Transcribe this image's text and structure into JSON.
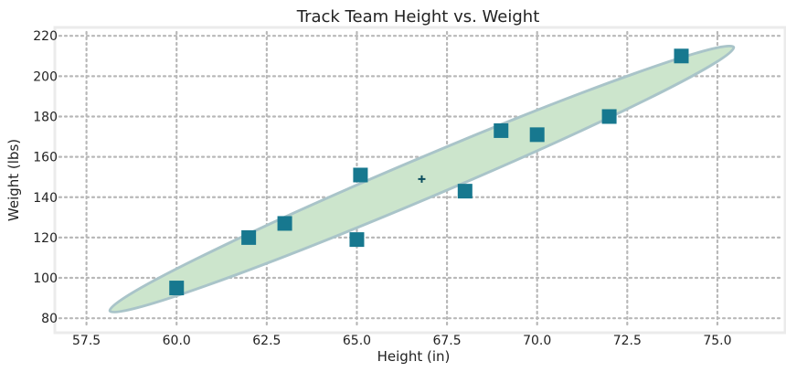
{
  "chart_data": {
    "type": "scatter",
    "title": "Track Team Height vs. Weight",
    "xlabel": "Height (in)",
    "ylabel": "Weight (lbs)",
    "xlim": [
      56.8,
      76.7
    ],
    "ylim": [
      76,
      221
    ],
    "xticks": [
      57.5,
      60.0,
      62.5,
      65.0,
      67.5,
      70.0,
      72.5,
      75.0
    ],
    "xtick_labels": [
      "57.5",
      "60.0",
      "62.5",
      "65.0",
      "67.5",
      "70.0",
      "72.5",
      "75.0"
    ],
    "yticks": [
      80,
      100,
      120,
      140,
      160,
      180,
      200,
      220
    ],
    "ytick_labels": [
      "80",
      "100",
      "120",
      "140",
      "160",
      "180",
      "200",
      "220"
    ],
    "grid": true,
    "points": [
      {
        "x": 60,
        "y": 95
      },
      {
        "x": 62,
        "y": 120
      },
      {
        "x": 63,
        "y": 127
      },
      {
        "x": 65,
        "y": 119
      },
      {
        "x": 65.1,
        "y": 151
      },
      {
        "x": 68,
        "y": 143
      },
      {
        "x": 69,
        "y": 173
      },
      {
        "x": 70,
        "y": 171
      },
      {
        "x": 72,
        "y": 180
      },
      {
        "x": 74,
        "y": 210
      }
    ],
    "mean_point": {
      "x": 66.8,
      "y": 149
    },
    "confidence_ellipse": {
      "center": {
        "x": 66.8,
        "y": 149
      },
      "extent_x": [
        58.2,
        75.5
      ],
      "extent_y": [
        83,
        215
      ]
    },
    "colors": {
      "marker": "#17788f",
      "mean_marker": "#0b4d5e",
      "ellipse_fill": "#cce5cc",
      "ellipse_edge": "#a9c4c9",
      "frame": "#ebebeb",
      "grid": "#b8b8b8"
    }
  }
}
